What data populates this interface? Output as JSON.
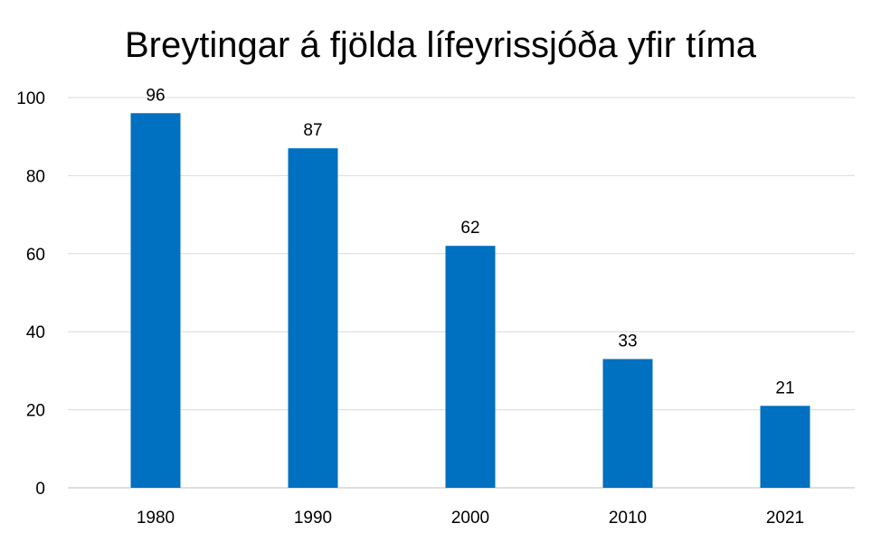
{
  "chart_data": {
    "type": "bar",
    "title": "Breytingar á fjölda lífeyrissjóða yfir tíma",
    "categories": [
      "1980",
      "1990",
      "2000",
      "2010",
      "2021"
    ],
    "values": [
      96,
      87,
      62,
      33,
      21
    ],
    "xlabel": "",
    "ylabel": "",
    "ylim": [
      0,
      100
    ],
    "yticks": [
      0,
      20,
      40,
      60,
      80,
      100
    ],
    "grid": true,
    "legend": "none",
    "bar_color": "#0070C0",
    "data_labels": true
  }
}
